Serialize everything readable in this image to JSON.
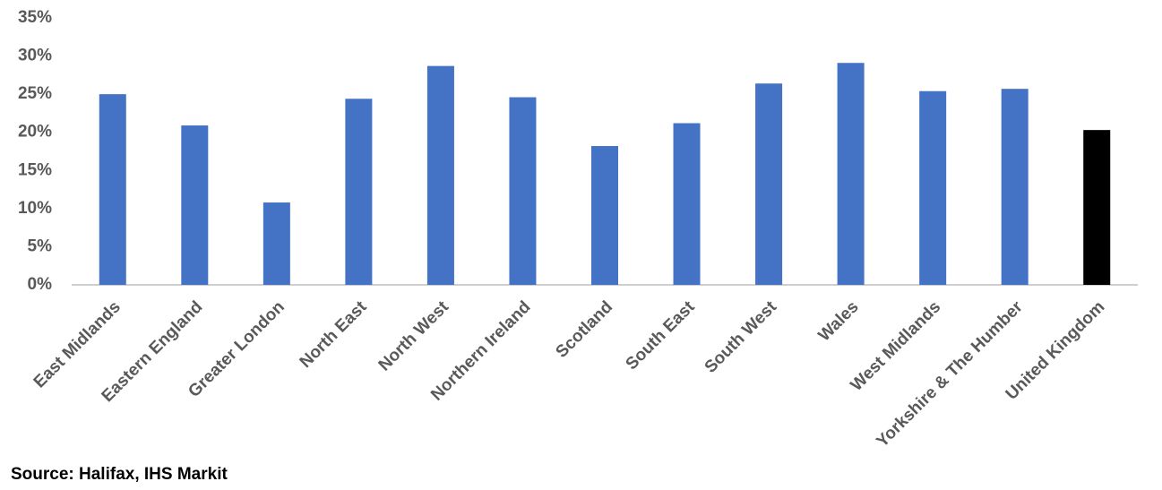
{
  "chart_data": {
    "type": "bar",
    "source": "Source: Halifax, IHS Markit",
    "categories": [
      "East Midlands",
      "Eastern England",
      "Greater London",
      "North East",
      "North West",
      "Northern Ireland",
      "Scotland",
      "South East",
      "South West",
      "Wales",
      "West Midlands",
      "Yorkshire & The Humber",
      "United Kingdom"
    ],
    "values": [
      25.0,
      20.9,
      10.8,
      24.4,
      28.7,
      24.6,
      18.2,
      21.2,
      26.4,
      29.1,
      25.4,
      25.7,
      20.3
    ],
    "colors": [
      "#4472c4",
      "#4472c4",
      "#4472c4",
      "#4472c4",
      "#4472c4",
      "#4472c4",
      "#4472c4",
      "#4472c4",
      "#4472c4",
      "#4472c4",
      "#4472c4",
      "#4472c4",
      "#000000"
    ],
    "ylim": [
      0,
      35
    ],
    "yticks": [
      {
        "value": 0,
        "label": "0%"
      },
      {
        "value": 5,
        "label": "5%"
      },
      {
        "value": 10,
        "label": "10%"
      },
      {
        "value": 15,
        "label": "15%"
      },
      {
        "value": 20,
        "label": "20%"
      },
      {
        "value": 25,
        "label": "25%"
      },
      {
        "value": 30,
        "label": "30%"
      },
      {
        "value": 35,
        "label": "35%"
      }
    ],
    "grid": false
  }
}
